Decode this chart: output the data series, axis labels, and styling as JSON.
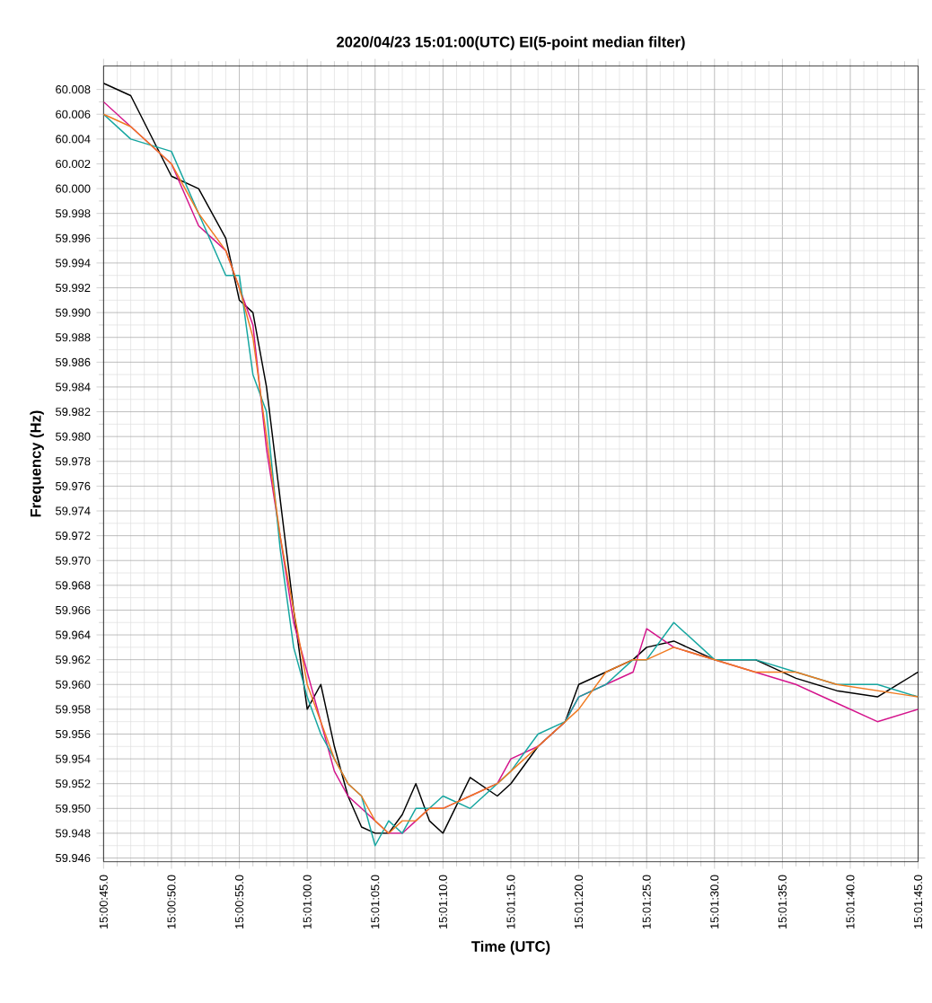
{
  "chart_data": {
    "type": "line",
    "title": "2020/04/23 15:01:00(UTC) EI(5-point median filter)",
    "xlabel": "Time (UTC)",
    "ylabel": "Frequency (Hz)",
    "x": [
      "2020-04-23T15:00:45",
      "2020-04-23T15:00:47",
      "2020-04-23T15:00:50",
      "2020-04-23T15:00:52",
      "2020-04-23T15:00:54",
      "2020-04-23T15:00:55",
      "2020-04-23T15:00:56",
      "2020-04-23T15:00:57",
      "2020-04-23T15:00:58",
      "2020-04-23T15:00:59",
      "2020-04-23T15:01:00",
      "2020-04-23T15:01:01",
      "2020-04-23T15:01:02",
      "2020-04-23T15:01:03",
      "2020-04-23T15:01:04",
      "2020-04-23T15:01:05",
      "2020-04-23T15:01:06",
      "2020-04-23T15:01:07",
      "2020-04-23T15:01:08",
      "2020-04-23T15:01:09",
      "2020-04-23T15:01:10",
      "2020-04-23T15:01:12",
      "2020-04-23T15:01:14",
      "2020-04-23T15:01:15",
      "2020-04-23T15:01:17",
      "2020-04-23T15:01:19",
      "2020-04-23T15:01:20",
      "2020-04-23T15:01:22",
      "2020-04-23T15:01:24",
      "2020-04-23T15:01:25",
      "2020-04-23T15:01:27",
      "2020-04-23T15:01:30",
      "2020-04-23T15:01:33",
      "2020-04-23T15:01:36",
      "2020-04-23T15:01:39",
      "2020-04-23T15:01:42",
      "2020-04-23T15:01:45"
    ],
    "series": [
      {
        "color": "#000000",
        "values": [
          60.0085,
          60.0075,
          60.001,
          60.0,
          59.996,
          59.991,
          59.99,
          59.984,
          59.975,
          59.966,
          59.958,
          59.96,
          59.955,
          59.951,
          59.9485,
          59.948,
          59.948,
          59.9495,
          59.952,
          59.949,
          59.948,
          59.9525,
          59.951,
          59.952,
          59.955,
          59.957,
          59.96,
          59.961,
          59.962,
          59.963,
          59.9635,
          59.962,
          59.962,
          59.9605,
          59.9595,
          59.959,
          59.961
        ]
      },
      {
        "color": "#d4148c",
        "values": [
          60.007,
          60.005,
          60.002,
          59.997,
          59.995,
          59.992,
          59.989,
          59.979,
          59.972,
          59.965,
          59.961,
          59.957,
          59.953,
          59.951,
          59.95,
          59.949,
          59.948,
          59.948,
          59.949,
          59.95,
          59.95,
          59.951,
          59.952,
          59.954,
          59.955,
          59.957,
          59.959,
          59.96,
          59.961,
          59.9645,
          59.963,
          59.962,
          59.961,
          59.96,
          59.9585,
          59.957,
          59.958
        ]
      },
      {
        "color": "#16a6a0",
        "values": [
          60.006,
          60.004,
          60.003,
          59.998,
          59.993,
          59.993,
          59.985,
          59.982,
          59.971,
          59.963,
          59.959,
          59.956,
          59.954,
          59.952,
          59.951,
          59.947,
          59.949,
          59.948,
          59.95,
          59.95,
          59.951,
          59.95,
          59.952,
          59.953,
          59.956,
          59.957,
          59.959,
          59.96,
          59.962,
          59.962,
          59.965,
          59.962,
          59.962,
          59.961,
          59.96,
          59.96,
          59.959
        ]
      },
      {
        "color": "#f07a20",
        "values": [
          60.006,
          60.005,
          60.002,
          59.998,
          59.995,
          59.992,
          59.988,
          59.98,
          59.972,
          59.966,
          59.96,
          59.957,
          59.954,
          59.952,
          59.951,
          59.949,
          59.948,
          59.949,
          59.949,
          59.95,
          59.95,
          59.951,
          59.952,
          59.953,
          59.955,
          59.957,
          59.958,
          59.961,
          59.962,
          59.962,
          59.963,
          59.962,
          59.961,
          59.961,
          59.96,
          59.9595,
          59.959
        ]
      }
    ],
    "xlim": [
      "2020-04-23T15:00:45",
      "2020-04-23T15:01:45"
    ],
    "xticks": [
      {
        "value": "2020-04-23T15:00:45",
        "label": "15:00:45.0"
      },
      {
        "value": "2020-04-23T15:00:50",
        "label": "15:00:50.0"
      },
      {
        "value": "2020-04-23T15:00:55",
        "label": "15:00:55.0"
      },
      {
        "value": "2020-04-23T15:01:00",
        "label": "15:01:00.0"
      },
      {
        "value": "2020-04-23T15:01:05",
        "label": "15:01:05.0"
      },
      {
        "value": "2020-04-23T15:01:10",
        "label": "15:01:10.0"
      },
      {
        "value": "2020-04-23T15:01:15",
        "label": "15:01:15.0"
      },
      {
        "value": "2020-04-23T15:01:20",
        "label": "15:01:20.0"
      },
      {
        "value": "2020-04-23T15:01:25",
        "label": "15:01:25.0"
      },
      {
        "value": "2020-04-23T15:01:30",
        "label": "15:01:30.0"
      },
      {
        "value": "2020-04-23T15:01:35",
        "label": "15:01:35.0"
      },
      {
        "value": "2020-04-23T15:01:40",
        "label": "15:01:40.0"
      },
      {
        "value": "2020-04-23T15:01:45",
        "label": "15:01:45.0"
      }
    ],
    "ylim": [
      59.9457,
      60.0099
    ],
    "yticks": [
      {
        "value": 59.946,
        "label": "59.946"
      },
      {
        "value": 59.948,
        "label": "59.948"
      },
      {
        "value": 59.95,
        "label": "59.950"
      },
      {
        "value": 59.952,
        "label": "59.952"
      },
      {
        "value": 59.954,
        "label": "59.954"
      },
      {
        "value": 59.956,
        "label": "59.956"
      },
      {
        "value": 59.958,
        "label": "59.958"
      },
      {
        "value": 59.96,
        "label": "59.960"
      },
      {
        "value": 59.962,
        "label": "59.962"
      },
      {
        "value": 59.964,
        "label": "59.964"
      },
      {
        "value": 59.966,
        "label": "59.966"
      },
      {
        "value": 59.968,
        "label": "59.968"
      },
      {
        "value": 59.97,
        "label": "59.970"
      },
      {
        "value": 59.972,
        "label": "59.972"
      },
      {
        "value": 59.974,
        "label": "59.974"
      },
      {
        "value": 59.976,
        "label": "59.976"
      },
      {
        "value": 59.978,
        "label": "59.978"
      },
      {
        "value": 59.98,
        "label": "59.980"
      },
      {
        "value": 59.982,
        "label": "59.982"
      },
      {
        "value": 59.984,
        "label": "59.984"
      },
      {
        "value": 59.986,
        "label": "59.986"
      },
      {
        "value": 59.988,
        "label": "59.988"
      },
      {
        "value": 59.99,
        "label": "59.990"
      },
      {
        "value": 59.992,
        "label": "59.992"
      },
      {
        "value": 59.994,
        "label": "59.994"
      },
      {
        "value": 59.996,
        "label": "59.996"
      },
      {
        "value": 59.998,
        "label": "59.998"
      },
      {
        "value": 60.0,
        "label": "60.000"
      },
      {
        "value": 60.002,
        "label": "60.002"
      },
      {
        "value": 60.004,
        "label": "60.004"
      },
      {
        "value": 60.006,
        "label": "60.006"
      },
      {
        "value": 60.008,
        "label": "60.008"
      }
    ],
    "grid": true,
    "marker": "none",
    "line_style": "solid"
  }
}
